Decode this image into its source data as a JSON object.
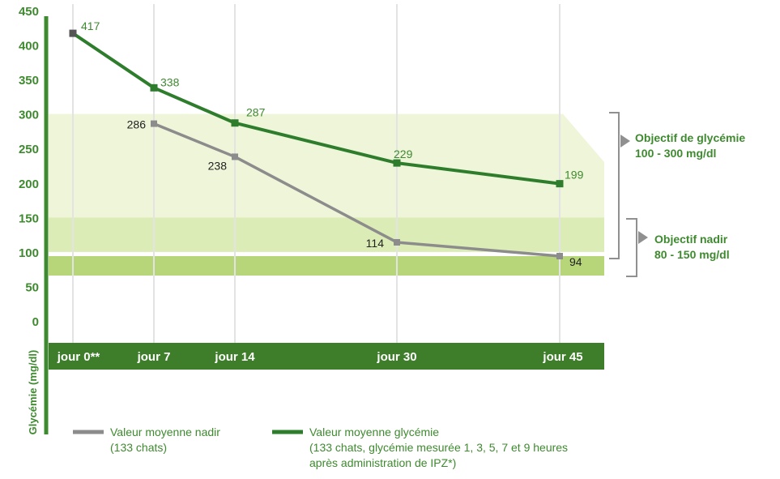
{
  "colors": {
    "glycemie": "#2e7d2c",
    "nadir": "#8c8c8c",
    "axis_green": "#3e8a2f",
    "band_light": "#eef5d8",
    "band_mid": "#dcecb6",
    "band_dark": "#b6d679",
    "xbar": "#3e7d2a",
    "bracket": "#909090"
  },
  "chart_data": {
    "type": "line",
    "ylabel": "Glycémie  (mg/dl)",
    "ylim": [
      0,
      450
    ],
    "yticks": [
      0,
      50,
      100,
      150,
      200,
      250,
      300,
      350,
      400,
      450
    ],
    "x": [
      0,
      7,
      14,
      30,
      45
    ],
    "xtick_labels": [
      "jour 0**",
      "jour 7",
      "jour 14",
      "jour 30",
      "jour 45"
    ],
    "grid": "vertical",
    "series": [
      {
        "key": "glycemie",
        "name": "Valeur moyenne glycémie",
        "name_detail": "(133 chats, glycémie mesurée 1, 3, 5, 7 et 9 heures après administration de IPZ*)",
        "color": "#2e7d2c",
        "x": [
          0,
          7,
          14,
          30,
          45
        ],
        "values": [
          417,
          338,
          287,
          229,
          199
        ]
      },
      {
        "key": "nadir",
        "name": "Valeur moyenne nadir",
        "name_detail": "(133 chats)",
        "color": "#8c8c8c",
        "x": [
          7,
          14,
          30,
          45
        ],
        "values": [
          286,
          238,
          114,
          94
        ]
      }
    ],
    "data_labels": {
      "glycemie": [
        "417",
        "338",
        "287",
        "229",
        "199"
      ],
      "nadir": [
        "286",
        "238",
        "114",
        "94"
      ]
    },
    "target_ranges": [
      {
        "label": "Objectif de glycémie",
        "range_text": "100 - 300 mg/dl",
        "from": 100,
        "to": 300
      },
      {
        "label": "Objectif nadir",
        "range_text": "80 - 150 mg/dl",
        "from": 80,
        "to": 150
      }
    ]
  },
  "legend": {
    "nadir": {
      "line1": "Valeur moyenne nadir",
      "line2": "(133 chats)"
    },
    "glycemie": {
      "line1": "Valeur moyenne glycémie",
      "line2": "(133 chats, glycémie mesurée 1, 3, 5, 7 et 9 heures",
      "line3": "après administration de IPZ*)"
    }
  }
}
